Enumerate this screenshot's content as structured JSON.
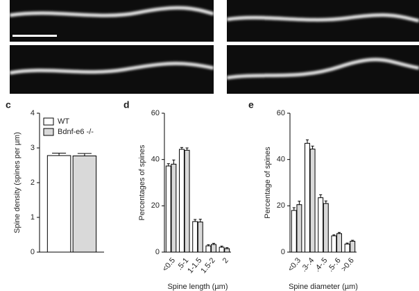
{
  "chart_data": [
    {
      "type": "bar",
      "panel": "c",
      "categories": [
        null
      ],
      "series": [
        {
          "name": "WT",
          "color": "#ffffff",
          "values": [
            2.78
          ],
          "errors": [
            0.07
          ]
        },
        {
          "name": "Bdnf-e6 -/-",
          "color": "#d9d9d9",
          "values": [
            2.77
          ],
          "errors": [
            0.07
          ]
        }
      ],
      "y_label": "Spine density (spines per µm)",
      "ylim": [
        0,
        4
      ],
      "yticks": [
        0,
        1,
        2,
        3,
        4
      ],
      "legend": "top-left"
    },
    {
      "type": "bar",
      "panel": "d",
      "categories": [
        "<0.5",
        ".5-1",
        "1-1.5",
        "1.5-2",
        "2"
      ],
      "series": [
        {
          "name": "WT",
          "color": "#ffffff",
          "values": [
            37.2,
            44.4,
            13.2,
            2.7,
            2.1
          ],
          "errors": [
            1,
            0.8,
            0.9,
            0.5,
            0.5
          ]
        },
        {
          "name": "Bdnf-e6 -/-",
          "color": "#d9d9d9",
          "values": [
            38,
            44,
            13,
            3.3,
            1.5
          ],
          "errors": [
            1.8,
            1,
            1.2,
            0.5,
            0.4
          ]
        }
      ],
      "x_label": "Spine length (µm)",
      "y_label": "Percentages of spines",
      "ylim": [
        0,
        60
      ],
      "yticks": [
        0,
        20,
        40,
        60
      ]
    },
    {
      "type": "bar",
      "panel": "e",
      "categories": [
        "<0.3",
        ".3-.4",
        ".4-.5",
        ".5-.6",
        ">0.6"
      ],
      "series": [
        {
          "name": "WT",
          "color": "#ffffff",
          "values": [
            18,
            47,
            23.5,
            7,
            3.5
          ],
          "errors": [
            1.2,
            1.5,
            1.3,
            0.5,
            0.4
          ]
        },
        {
          "name": "Bdnf-e6 -/-",
          "color": "#d9d9d9",
          "values": [
            20.5,
            44.5,
            21,
            8,
            4.7
          ],
          "errors": [
            1.5,
            1.3,
            1.1,
            0.5,
            0.4
          ]
        }
      ],
      "x_label": "Spine diameter (µm)",
      "y_label": "Percentage of spines",
      "ylim": [
        0,
        60
      ],
      "yticks": [
        0,
        20,
        40,
        60
      ]
    }
  ]
}
